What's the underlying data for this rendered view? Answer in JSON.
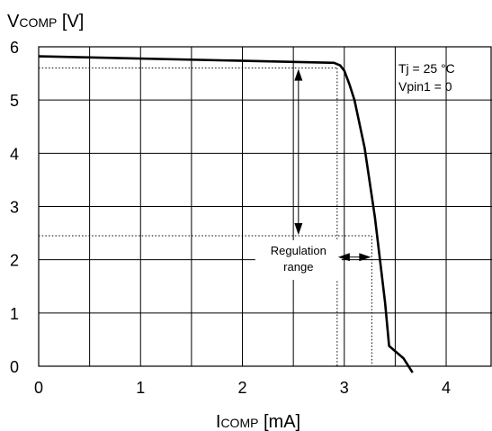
{
  "chart_data": {
    "type": "line",
    "ylabel_main": "V",
    "ylabel_sub": "COMP",
    "ylabel_unit": " [V]",
    "xlabel_main": "I",
    "xlabel_sub": "COMP",
    "xlabel_unit": " [mA]",
    "xlim": [
      0,
      4.45
    ],
    "ylim": [
      0,
      6
    ],
    "x_ticks": [
      0,
      1,
      2,
      3,
      4
    ],
    "y_ticks": [
      0,
      1,
      2,
      3,
      4,
      5,
      6
    ],
    "x_grid": [
      0.5,
      1,
      1.5,
      2,
      2.5,
      3,
      3.5,
      4
    ],
    "y_grid": [
      1,
      2,
      3,
      4,
      5
    ],
    "grid": true,
    "series": [
      {
        "x": [
          0,
          2.9,
          2.96,
          3.0,
          3.05,
          3.1,
          3.2,
          3.3,
          3.4,
          3.44,
          3.58,
          3.67
        ],
        "y": [
          5.82,
          5.7,
          5.65,
          5.55,
          5.3,
          5.0,
          4.1,
          2.8,
          1.2,
          0.38,
          0.15,
          -0.12
        ]
      }
    ],
    "annotations": {
      "conditions": [
        "Tj = 25 °C",
        "Vpin1 = 0"
      ],
      "regulation_label": [
        "Regulation",
        "range"
      ],
      "v_upper": 5.6,
      "v_lower": 2.45,
      "i_left": 2.93,
      "i_right": 3.27,
      "arrow_x": 2.55,
      "label_x": 2.55,
      "h_arrow_y": 2.05
    }
  }
}
